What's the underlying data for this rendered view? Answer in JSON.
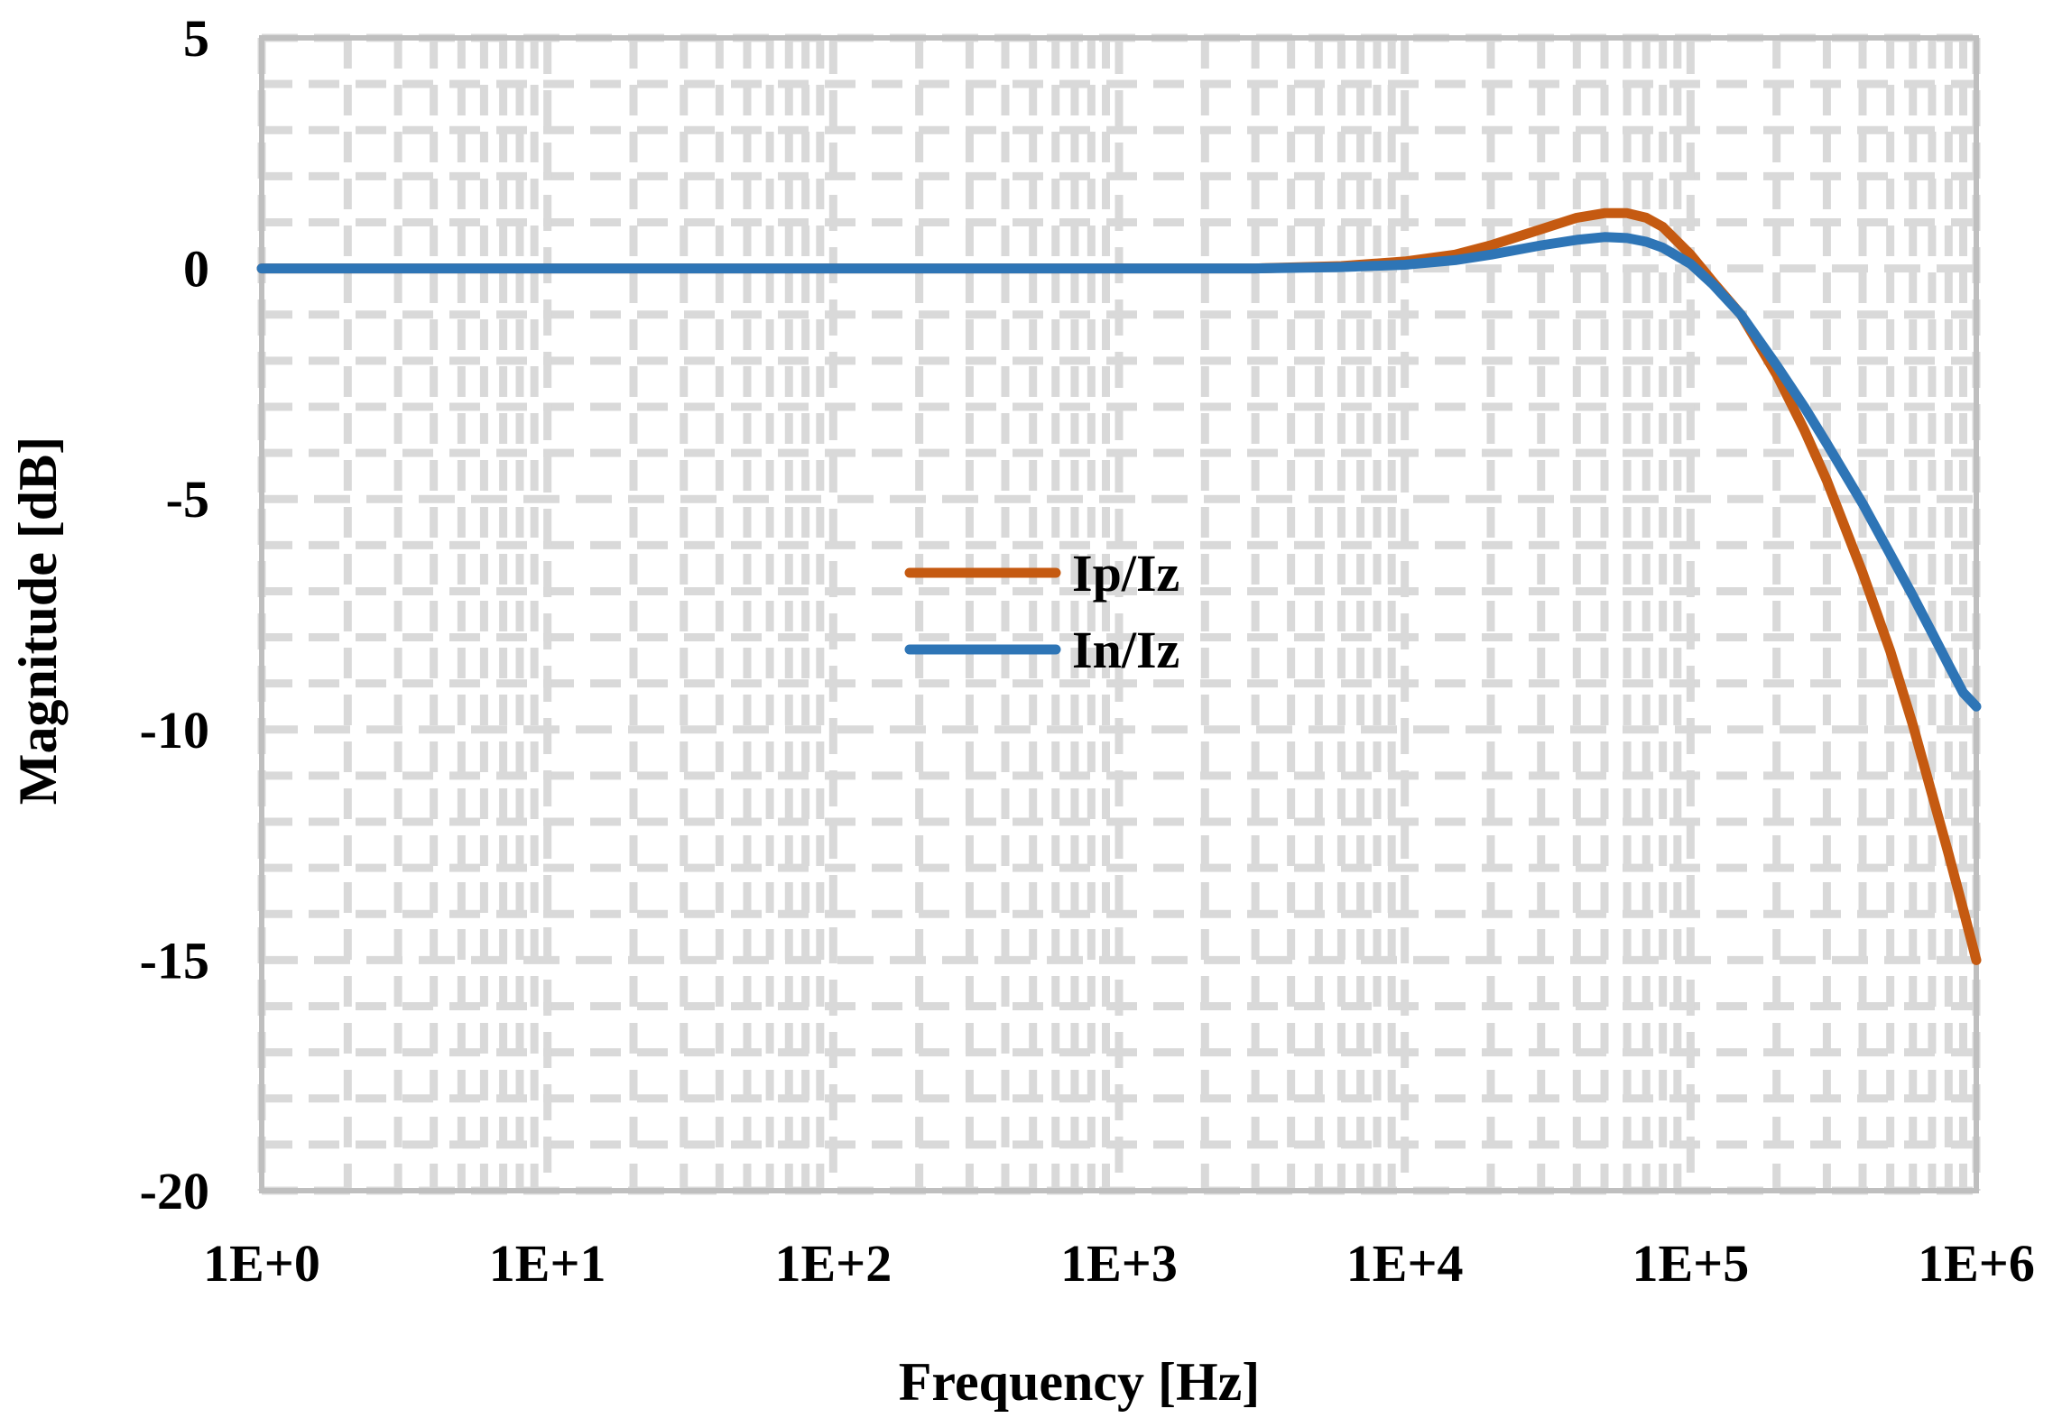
{
  "chart_data": {
    "type": "line",
    "title": "",
    "xlabel": "Frequency [Hz]",
    "ylabel": "Magnitude [dB]",
    "x_scale": "log",
    "xlim": [
      1,
      1000000
    ],
    "ylim": [
      -20,
      5
    ],
    "x_ticks": [
      {
        "value": 1,
        "label": "1E+0"
      },
      {
        "value": 10,
        "label": "1E+1"
      },
      {
        "value": 100,
        "label": "1E+2"
      },
      {
        "value": 1000,
        "label": "1E+3"
      },
      {
        "value": 10000,
        "label": "1E+4"
      },
      {
        "value": 100000,
        "label": "1E+5"
      },
      {
        "value": 1000000,
        "label": "1E+6"
      }
    ],
    "y_ticks": [
      {
        "value": 5,
        "label": "5"
      },
      {
        "value": 0,
        "label": "0"
      },
      {
        "value": -5,
        "label": "-5"
      },
      {
        "value": -10,
        "label": "-10"
      },
      {
        "value": -15,
        "label": "-15"
      },
      {
        "value": -20,
        "label": "-20"
      }
    ],
    "grid": true,
    "legend_position": "center",
    "series": [
      {
        "name": "Ip/Iz",
        "color": "#c55a11",
        "points": [
          [
            1,
            0
          ],
          [
            10,
            0
          ],
          [
            100,
            0
          ],
          [
            1000,
            0
          ],
          [
            3000,
            0
          ],
          [
            6000,
            0.05
          ],
          [
            10000,
            0.15
          ],
          [
            15000,
            0.3
          ],
          [
            20000,
            0.5
          ],
          [
            30000,
            0.85
          ],
          [
            40000,
            1.1
          ],
          [
            50000,
            1.2
          ],
          [
            60000,
            1.2
          ],
          [
            70000,
            1.1
          ],
          [
            80000,
            0.9
          ],
          [
            100000,
            0.3
          ],
          [
            120000,
            -0.3
          ],
          [
            150000,
            -1.0
          ],
          [
            200000,
            -2.3
          ],
          [
            250000,
            -3.5
          ],
          [
            300000,
            -4.6
          ],
          [
            400000,
            -6.6
          ],
          [
            500000,
            -8.3
          ],
          [
            600000,
            -9.9
          ],
          [
            700000,
            -11.4
          ],
          [
            800000,
            -12.7
          ],
          [
            900000,
            -13.9
          ],
          [
            1000000,
            -15.0
          ]
        ]
      },
      {
        "name": "In/Iz",
        "color": "#2e75b6",
        "points": [
          [
            1,
            0
          ],
          [
            10,
            0
          ],
          [
            100,
            0
          ],
          [
            1000,
            0
          ],
          [
            3000,
            0
          ],
          [
            6000,
            0.03
          ],
          [
            10000,
            0.08
          ],
          [
            15000,
            0.18
          ],
          [
            20000,
            0.3
          ],
          [
            30000,
            0.5
          ],
          [
            40000,
            0.62
          ],
          [
            50000,
            0.68
          ],
          [
            60000,
            0.66
          ],
          [
            70000,
            0.58
          ],
          [
            80000,
            0.45
          ],
          [
            100000,
            0.1
          ],
          [
            120000,
            -0.35
          ],
          [
            150000,
            -1.0
          ],
          [
            200000,
            -2.1
          ],
          [
            250000,
            -3.0
          ],
          [
            300000,
            -3.8
          ],
          [
            400000,
            -5.1
          ],
          [
            500000,
            -6.2
          ],
          [
            600000,
            -7.1
          ],
          [
            700000,
            -7.9
          ],
          [
            800000,
            -8.6
          ],
          [
            900000,
            -9.2
          ],
          [
            1000000,
            -9.5
          ]
        ]
      }
    ]
  }
}
